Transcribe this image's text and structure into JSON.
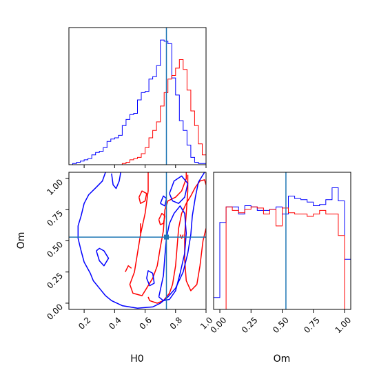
{
  "chart_data": {
    "type": "corner",
    "x_param": "H0",
    "y_param": "Om",
    "xlabel": "H0",
    "ylabel": "Om",
    "x_range": [
      0.1,
      1.0
    ],
    "y_range": [
      -0.05,
      1.05
    ],
    "x_ticks": [
      "0.2",
      "0.4",
      "0.6",
      "0.8",
      "1.0"
    ],
    "y_ticks": [
      "0.00",
      "0.25",
      "0.50",
      "0.75",
      "1.00"
    ],
    "truth": {
      "H0": 0.74,
      "Om": 0.53
    },
    "colors": {
      "series_a": "#0000ff",
      "series_b": "#ff0000",
      "truth": "#1f77b4"
    },
    "h0_hist": {
      "bin_edges": [
        0.1,
        0.125,
        0.15,
        0.175,
        0.2,
        0.225,
        0.25,
        0.275,
        0.3,
        0.325,
        0.35,
        0.375,
        0.4,
        0.425,
        0.45,
        0.475,
        0.5,
        0.525,
        0.55,
        0.575,
        0.6,
        0.625,
        0.65,
        0.675,
        0.7,
        0.725,
        0.75,
        0.775,
        0.8,
        0.825,
        0.85,
        0.875,
        0.9,
        0.925,
        0.95,
        0.975,
        1.0
      ],
      "series_a": [
        0,
        1,
        2,
        3,
        4,
        5,
        8,
        10,
        11,
        14,
        19,
        21,
        22,
        24,
        32,
        37,
        41,
        42,
        53,
        59,
        60,
        70,
        72,
        81,
        102,
        101,
        99,
        71,
        57,
        36,
        28,
        16,
        6,
        2,
        1,
        1
      ],
      "series_b": [
        0,
        0,
        0,
        0,
        0,
        0,
        0,
        0,
        0,
        0,
        0,
        0,
        0,
        0,
        1,
        2,
        4,
        5,
        6,
        9,
        14,
        22,
        28,
        35,
        48,
        59,
        70,
        73,
        79,
        86,
        78,
        61,
        44,
        32,
        17,
        8
      ]
    },
    "om_hist": {
      "bin_edges": [
        -0.05,
        0.0,
        0.05,
        0.1,
        0.15,
        0.2,
        0.25,
        0.3,
        0.35,
        0.4,
        0.45,
        0.5,
        0.55,
        0.6,
        0.65,
        0.7,
        0.75,
        0.8,
        0.85,
        0.9,
        0.95,
        1.0,
        1.05
      ],
      "series_a": [
        0.1,
        0.73,
        0.86,
        0.86,
        0.8,
        0.87,
        0.86,
        0.83,
        0.83,
        0.84,
        0.86,
        0.8,
        0.95,
        0.93,
        0.92,
        0.9,
        0.87,
        0.88,
        0.92,
        1.02,
        0.91,
        0.42
      ],
      "series_b": [
        0.0,
        0.0,
        0.86,
        0.83,
        0.81,
        0.84,
        0.86,
        0.85,
        0.8,
        0.84,
        0.7,
        0.85,
        0.81,
        0.8,
        0.8,
        0.78,
        0.8,
        0.83,
        0.8,
        0.8,
        0.62,
        0.0
      ]
    },
    "contours": {
      "series_a": [
        [
          [
            0.34,
            1.05
          ],
          [
            0.32,
            0.98
          ],
          [
            0.28,
            0.93
          ],
          [
            0.23,
            0.87
          ],
          [
            0.2,
            0.8
          ],
          [
            0.18,
            0.7
          ],
          [
            0.16,
            0.62
          ],
          [
            0.16,
            0.52
          ],
          [
            0.18,
            0.42
          ],
          [
            0.2,
            0.33
          ],
          [
            0.24,
            0.24
          ],
          [
            0.26,
            0.18
          ],
          [
            0.3,
            0.12
          ],
          [
            0.34,
            0.06
          ],
          [
            0.38,
            0.02
          ],
          [
            0.45,
            -0.02
          ],
          [
            0.55,
            -0.04
          ],
          [
            0.65,
            -0.03
          ],
          [
            0.7,
            0.0
          ],
          [
            0.75,
            0.05
          ],
          [
            0.8,
            0.12
          ],
          [
            0.85,
            0.25
          ],
          [
            0.88,
            0.4
          ],
          [
            0.9,
            0.55
          ],
          [
            0.91,
            0.7
          ],
          [
            0.93,
            0.85
          ],
          [
            0.95,
            0.97
          ],
          [
            0.98,
            1.03
          ],
          [
            0.99,
            1.05
          ]
        ],
        [
          [
            0.38,
            1.04
          ],
          [
            0.39,
            0.95
          ],
          [
            0.41,
            0.92
          ],
          [
            0.43,
            0.98
          ],
          [
            0.44,
            1.05
          ]
        ],
        [
          [
            0.28,
            0.42
          ],
          [
            0.3,
            0.34
          ],
          [
            0.33,
            0.3
          ],
          [
            0.36,
            0.36
          ],
          [
            0.33,
            0.42
          ],
          [
            0.3,
            0.44
          ],
          [
            0.28,
            0.42
          ]
        ],
        [
          [
            0.69,
            0.05
          ],
          [
            0.72,
            0.22
          ],
          [
            0.73,
            0.38
          ],
          [
            0.74,
            0.52
          ],
          [
            0.76,
            0.64
          ],
          [
            0.79,
            0.72
          ],
          [
            0.83,
            0.78
          ],
          [
            0.86,
            0.72
          ],
          [
            0.87,
            0.56
          ],
          [
            0.86,
            0.4
          ],
          [
            0.83,
            0.24
          ],
          [
            0.8,
            0.1
          ],
          [
            0.76,
            0.03
          ],
          [
            0.72,
            0.02
          ],
          [
            0.69,
            0.05
          ]
        ],
        [
          [
            0.76,
            0.88
          ],
          [
            0.79,
            0.98
          ],
          [
            0.84,
            1.02
          ],
          [
            0.88,
            0.96
          ],
          [
            0.86,
            0.85
          ],
          [
            0.82,
            0.8
          ],
          [
            0.78,
            0.82
          ],
          [
            0.76,
            0.88
          ]
        ],
        [
          [
            0.7,
            0.8
          ],
          [
            0.72,
            0.86
          ],
          [
            0.74,
            0.84
          ],
          [
            0.73,
            0.78
          ],
          [
            0.7,
            0.8
          ]
        ],
        [
          [
            0.61,
            0.2
          ],
          [
            0.63,
            0.14
          ],
          [
            0.66,
            0.16
          ],
          [
            0.65,
            0.24
          ],
          [
            0.62,
            0.26
          ],
          [
            0.61,
            0.2
          ]
        ]
      ],
      "series_b": [
        [
          [
            0.62,
            0.05
          ],
          [
            0.63,
            0.02
          ],
          [
            0.68,
            0.0
          ],
          [
            0.72,
            0.02
          ],
          [
            0.76,
            0.08
          ],
          [
            0.78,
            0.15
          ],
          [
            0.8,
            0.3
          ],
          [
            0.81,
            0.45
          ],
          [
            0.82,
            0.6
          ],
          [
            0.84,
            0.72
          ],
          [
            0.87,
            0.8
          ],
          [
            0.9,
            0.86
          ],
          [
            0.93,
            0.93
          ],
          [
            0.96,
            0.98
          ],
          [
            0.99,
            0.99
          ],
          [
            1.0,
            0.95
          ]
        ],
        [
          [
            0.88,
            1.03
          ],
          [
            0.88,
            0.9
          ],
          [
            0.87,
            0.72
          ],
          [
            0.86,
            0.55
          ],
          [
            0.86,
            0.35
          ],
          [
            0.87,
            0.18
          ],
          [
            0.9,
            0.1
          ],
          [
            0.94,
            0.15
          ],
          [
            0.96,
            0.3
          ],
          [
            0.98,
            0.5
          ],
          [
            1.0,
            0.6
          ]
        ],
        [
          [
            0.62,
            1.05
          ],
          [
            0.62,
            0.9
          ],
          [
            0.6,
            0.72
          ],
          [
            0.57,
            0.55
          ],
          [
            0.55,
            0.4
          ],
          [
            0.53,
            0.25
          ],
          [
            0.5,
            0.15
          ],
          [
            0.52,
            0.08
          ],
          [
            0.58,
            0.06
          ],
          [
            0.61,
            0.12
          ],
          [
            0.65,
            0.2
          ],
          [
            0.68,
            0.3
          ],
          [
            0.7,
            0.45
          ],
          [
            0.72,
            0.58
          ],
          [
            0.73,
            0.75
          ],
          [
            0.75,
            0.82
          ],
          [
            0.8,
            0.85
          ],
          [
            0.84,
            0.9
          ],
          [
            0.87,
            1.0
          ],
          [
            0.87,
            1.05
          ]
        ],
        [
          [
            0.56,
            0.85
          ],
          [
            0.58,
            0.9
          ],
          [
            0.61,
            0.88
          ],
          [
            0.6,
            0.82
          ],
          [
            0.57,
            0.8
          ],
          [
            0.56,
            0.85
          ]
        ],
        [
          [
            0.57,
            0.64
          ],
          [
            0.57,
            0.56
          ]
        ],
        [
          [
            0.47,
            0.25
          ],
          [
            0.49,
            0.3
          ],
          [
            0.51,
            0.28
          ]
        ],
        [
          [
            0.69,
            0.67
          ],
          [
            0.71,
            0.72
          ],
          [
            0.73,
            0.7
          ],
          [
            0.72,
            0.64
          ],
          [
            0.7,
            0.63
          ],
          [
            0.69,
            0.67
          ]
        ],
        [
          [
            0.83,
            0.55
          ],
          [
            0.84,
            0.52
          ],
          [
            0.85,
            0.55
          ]
        ]
      ]
    }
  }
}
